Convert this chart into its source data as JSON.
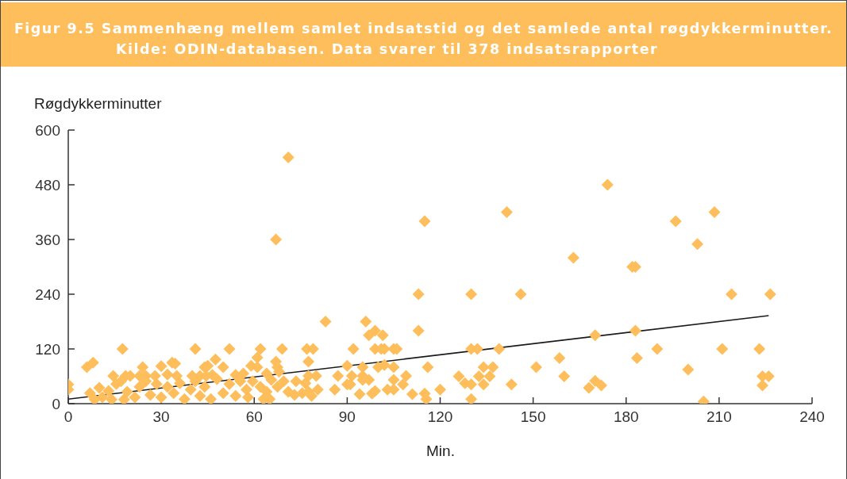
{
  "chart_data": {
    "type": "scatter",
    "title": "Figur 9.5 Sammenhæng mellem samlet indsatstid og det samlede antal røgdykkerminutter.",
    "subtitle": "Kilde: ODIN-databasen. Data svarer til 378 indsatsrapporter",
    "xlabel": "Min.",
    "ylabel": "Røgdykkerminutter",
    "xlim": [
      0,
      240
    ],
    "xticks": [
      0,
      30,
      60,
      90,
      120,
      150,
      180,
      210,
      240
    ],
    "ylim": [
      0,
      600
    ],
    "yticks": [
      0,
      120,
      240,
      360,
      480,
      600
    ],
    "marker": "diamond",
    "series": [
      {
        "color": "#fdbe5b",
        "x": [
          71,
          67,
          115,
          141.5,
          174,
          196,
          208.5,
          203,
          182,
          183,
          214,
          226.5,
          170,
          183,
          183.5,
          190,
          211,
          223,
          200,
          170,
          172,
          168,
          224,
          226,
          224,
          205,
          163,
          113,
          130,
          146,
          96,
          113,
          97,
          99,
          101.5,
          92,
          99,
          101,
          102,
          105,
          106,
          130,
          132,
          139,
          151,
          158.5,
          160,
          116,
          134,
          137,
          132.5,
          136,
          126,
          128,
          130,
          134,
          143,
          120,
          115,
          115.5,
          130,
          111,
          109,
          108,
          105,
          105,
          103,
          105,
          100,
          102,
          95,
          91.5,
          95,
          95,
          97,
          94,
          98,
          99,
          91,
          83,
          52,
          62,
          69,
          77,
          79,
          47.5,
          61,
          50,
          59,
          61,
          67,
          67.5,
          77.5,
          44,
          45,
          90,
          46.5,
          54,
          87,
          80,
          80.5,
          77.5,
          86,
          90,
          73,
          63,
          65,
          0,
          0,
          17.5,
          41,
          6,
          8,
          24,
          30,
          33.5,
          34.5,
          14.5,
          18.5,
          20,
          23,
          25,
          28,
          32,
          35,
          40,
          42.5,
          44.5,
          7,
          10,
          11,
          13,
          15.5,
          17,
          19,
          21.5,
          23,
          25,
          26.5,
          28.5,
          30,
          32,
          34,
          36,
          37.5,
          39.5,
          41,
          42.5,
          44,
          46,
          18,
          14,
          8.5,
          48,
          50,
          52,
          54,
          55.5,
          57.5,
          59.5,
          62,
          64,
          65.5,
          67.5,
          69.5,
          71,
          58,
          75.5,
          73.5,
          76.5,
          77.5,
          68,
          64,
          56.5,
          78.5
        ],
        "values": [
          540,
          360,
          400,
          420,
          480,
          400,
          420,
          350,
          300,
          300,
          240,
          240,
          150,
          160,
          100,
          120,
          120,
          120,
          75,
          50,
          40,
          35,
          60,
          60,
          40,
          5,
          320,
          240,
          240,
          240,
          180,
          160,
          150,
          160,
          150,
          120,
          120,
          120,
          120,
          120,
          120,
          120,
          120,
          120,
          80,
          100,
          60,
          80,
          80,
          80,
          60,
          60,
          60,
          45,
          42,
          42,
          42,
          31,
          22,
          10,
          10,
          21,
          61,
          42,
          52,
          31,
          31,
          80,
          80,
          85,
          80,
          61,
          61,
          52,
          52,
          21,
          22,
          28,
          42,
          180,
          120,
          120,
          120,
          120,
          120,
          97,
          101,
          80,
          83,
          80,
          92,
          80,
          92,
          80,
          83,
          83,
          63,
          63,
          61,
          61,
          31,
          26,
          31,
          42,
          19,
          10,
          10,
          42,
          31,
          120,
          120,
          80,
          90,
          80,
          82,
          90,
          88,
          61,
          61,
          61,
          61,
          61,
          61,
          64,
          61,
          61,
          61,
          61,
          23,
          35,
          14,
          28,
          43,
          49,
          26,
          14,
          37,
          49,
          19,
          43,
          14,
          37,
          23,
          45,
          10,
          31,
          49,
          17,
          37,
          10,
          9,
          9,
          9,
          54,
          23,
          43,
          17,
          49,
          31,
          49,
          37,
          26,
          52,
          37,
          49,
          26,
          14,
          23,
          49,
          45,
          61,
          70,
          66,
          66,
          17
        ]
      },
      {
        "type": "line",
        "color": "#1a1a1a",
        "marker": "none",
        "x": [
          0,
          226
        ],
        "values": [
          10,
          193
        ]
      }
    ]
  }
}
